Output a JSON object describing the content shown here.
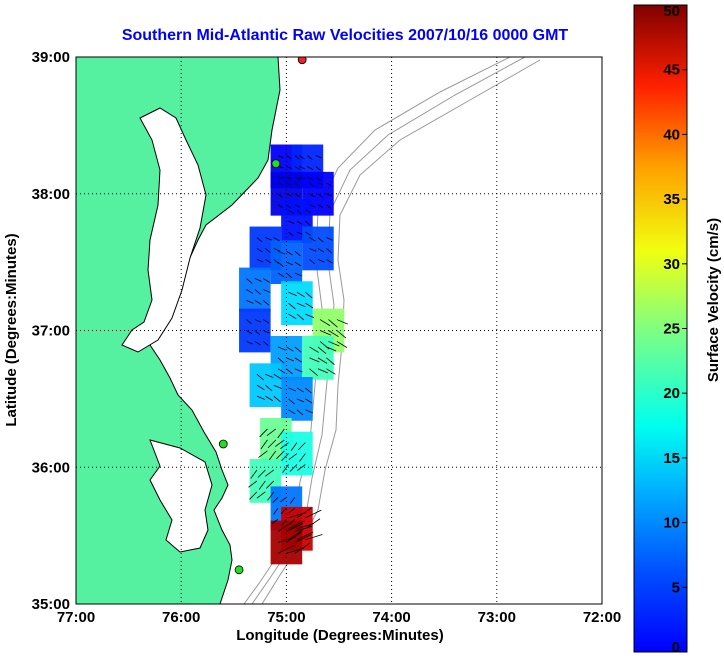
{
  "chart_data": {
    "type": "heatmap",
    "title": "Southern Mid-Atlantic Raw Velocities 2007/10/16 0000 GMT",
    "xlabel": "Longitude (Degrees:Minutes)",
    "ylabel": "Latitude (Degrees:Minutes)",
    "colorbar_label": "Surface Velocity (cm/s)",
    "x_ticks": [
      {
        "value": -77,
        "label": "77:00"
      },
      {
        "value": -76,
        "label": "76:00"
      },
      {
        "value": -75,
        "label": "75:00"
      },
      {
        "value": -74,
        "label": "74:00"
      },
      {
        "value": -73,
        "label": "73:00"
      },
      {
        "value": -72,
        "label": "72:00"
      }
    ],
    "y_ticks": [
      {
        "value": 35,
        "label": "35:00"
      },
      {
        "value": 36,
        "label": "36:00"
      },
      {
        "value": 37,
        "label": "37:00"
      },
      {
        "value": 38,
        "label": "38:00"
      },
      {
        "value": 39,
        "label": "39:00"
      }
    ],
    "xlim": [
      -77,
      -72
    ],
    "ylim": [
      35,
      39
    ],
    "colorbar_range": [
      0,
      50
    ],
    "colorbar_ticks": [
      0,
      5,
      10,
      15,
      20,
      25,
      30,
      35,
      40,
      45,
      50
    ],
    "grid": "dotted",
    "colors": {
      "title": "#0000ff",
      "land": "#55f0a0",
      "coastline": "#000000",
      "bathymetry": "#999999",
      "station": "#22dd22",
      "station_red": "#ee2222"
    },
    "stations": [
      {
        "lon": -74.85,
        "lat": 38.98,
        "color": "red"
      },
      {
        "lon": -75.1,
        "lat": 38.22,
        "color": "green"
      },
      {
        "lon": -75.6,
        "lat": 36.17,
        "color": "green"
      },
      {
        "lon": -75.45,
        "lat": 35.25,
        "color": "green"
      }
    ],
    "velocity_cells": [
      {
        "lon": -75.0,
        "lat": 38.2,
        "speed": 6
      },
      {
        "lon": -74.8,
        "lat": 38.2,
        "speed": 8
      },
      {
        "lon": -74.7,
        "lat": 38.0,
        "speed": 6
      },
      {
        "lon": -75.0,
        "lat": 38.0,
        "speed": 5
      },
      {
        "lon": -74.9,
        "lat": 37.8,
        "speed": 7
      },
      {
        "lon": -75.2,
        "lat": 37.6,
        "speed": 9
      },
      {
        "lon": -75.0,
        "lat": 37.5,
        "speed": 11
      },
      {
        "lon": -74.7,
        "lat": 37.6,
        "speed": 10
      },
      {
        "lon": -75.3,
        "lat": 37.3,
        "speed": 12
      },
      {
        "lon": -74.9,
        "lat": 37.2,
        "speed": 17
      },
      {
        "lon": -74.6,
        "lat": 37.0,
        "speed": 26
      },
      {
        "lon": -75.3,
        "lat": 37.0,
        "speed": 9
      },
      {
        "lon": -75.0,
        "lat": 36.8,
        "speed": 14
      },
      {
        "lon": -74.7,
        "lat": 36.8,
        "speed": 22
      },
      {
        "lon": -75.2,
        "lat": 36.6,
        "speed": 16
      },
      {
        "lon": -74.9,
        "lat": 36.5,
        "speed": 13
      },
      {
        "lon": -75.1,
        "lat": 36.2,
        "speed": 24
      },
      {
        "lon": -74.9,
        "lat": 36.1,
        "speed": 20
      },
      {
        "lon": -75.2,
        "lat": 35.9,
        "speed": 22
      },
      {
        "lon": -75.0,
        "lat": 35.7,
        "speed": 12
      },
      {
        "lon": -74.9,
        "lat": 35.55,
        "speed": 46
      },
      {
        "lon": -75.0,
        "lat": 35.45,
        "speed": 48
      }
    ]
  }
}
